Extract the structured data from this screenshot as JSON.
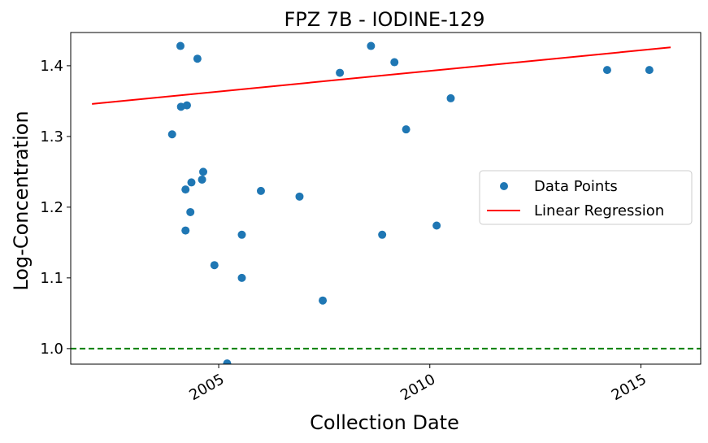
{
  "chart_data": {
    "type": "scatter",
    "title": "FPZ  7B - IODINE-129",
    "xlabel": "Collection Date",
    "ylabel": "Log-Concentration",
    "xlim": [
      "2001-07-01",
      "2016-06-01"
    ],
    "ylim": [
      0.978,
      1.447
    ],
    "x_ticks": [
      {
        "label": "2005",
        "value": "2005-01-01"
      },
      {
        "label": "2010",
        "value": "2010-01-01"
      },
      {
        "label": "2015",
        "value": "2015-01-01"
      }
    ],
    "y_ticks": [
      {
        "label": "1.0",
        "value": 1.0
      },
      {
        "label": "1.1",
        "value": 1.1
      },
      {
        "label": "1.2",
        "value": 1.2
      },
      {
        "label": "1.3",
        "value": 1.3
      },
      {
        "label": "1.4",
        "value": 1.4
      }
    ],
    "grid": false,
    "legend_position": "center-right",
    "series": [
      {
        "name": "Data Points",
        "kind": "scatter",
        "color": "#1f77b4",
        "points": [
          {
            "x": "2003-11-25",
            "y": 1.303
          },
          {
            "x": "2004-02-05",
            "y": 1.428
          },
          {
            "x": "2004-02-10",
            "y": 1.342
          },
          {
            "x": "2004-03-20",
            "y": 1.225
          },
          {
            "x": "2004-03-20",
            "y": 1.167
          },
          {
            "x": "2004-04-01",
            "y": 1.344
          },
          {
            "x": "2004-05-01",
            "y": 1.193
          },
          {
            "x": "2004-05-10",
            "y": 1.235
          },
          {
            "x": "2004-07-01",
            "y": 1.41
          },
          {
            "x": "2004-08-10",
            "y": 1.239
          },
          {
            "x": "2004-08-20",
            "y": 1.25
          },
          {
            "x": "2004-11-25",
            "y": 1.118
          },
          {
            "x": "2005-03-15",
            "y": 0.979
          },
          {
            "x": "2005-07-20",
            "y": 1.161
          },
          {
            "x": "2005-07-20",
            "y": 1.1
          },
          {
            "x": "2006-01-01",
            "y": 1.223
          },
          {
            "x": "2006-12-01",
            "y": 1.215
          },
          {
            "x": "2007-06-20",
            "y": 1.068
          },
          {
            "x": "2007-11-15",
            "y": 1.39
          },
          {
            "x": "2008-08-10",
            "y": 1.428
          },
          {
            "x": "2008-11-15",
            "y": 1.161
          },
          {
            "x": "2009-03-01",
            "y": 1.405
          },
          {
            "x": "2009-06-10",
            "y": 1.31
          },
          {
            "x": "2010-03-01",
            "y": 1.174
          },
          {
            "x": "2010-07-01",
            "y": 1.354
          },
          {
            "x": "2014-03-15",
            "y": 1.394
          },
          {
            "x": "2015-03-15",
            "y": 1.394
          }
        ]
      },
      {
        "name": "Linear Regression",
        "kind": "line",
        "color": "#ff0000",
        "points": [
          {
            "x": "2002-01-01",
            "y": 1.346
          },
          {
            "x": "2015-09-15",
            "y": 1.426
          }
        ]
      }
    ],
    "reference_line": {
      "y": 1.0,
      "color": "#008000",
      "style": "dashed"
    }
  }
}
